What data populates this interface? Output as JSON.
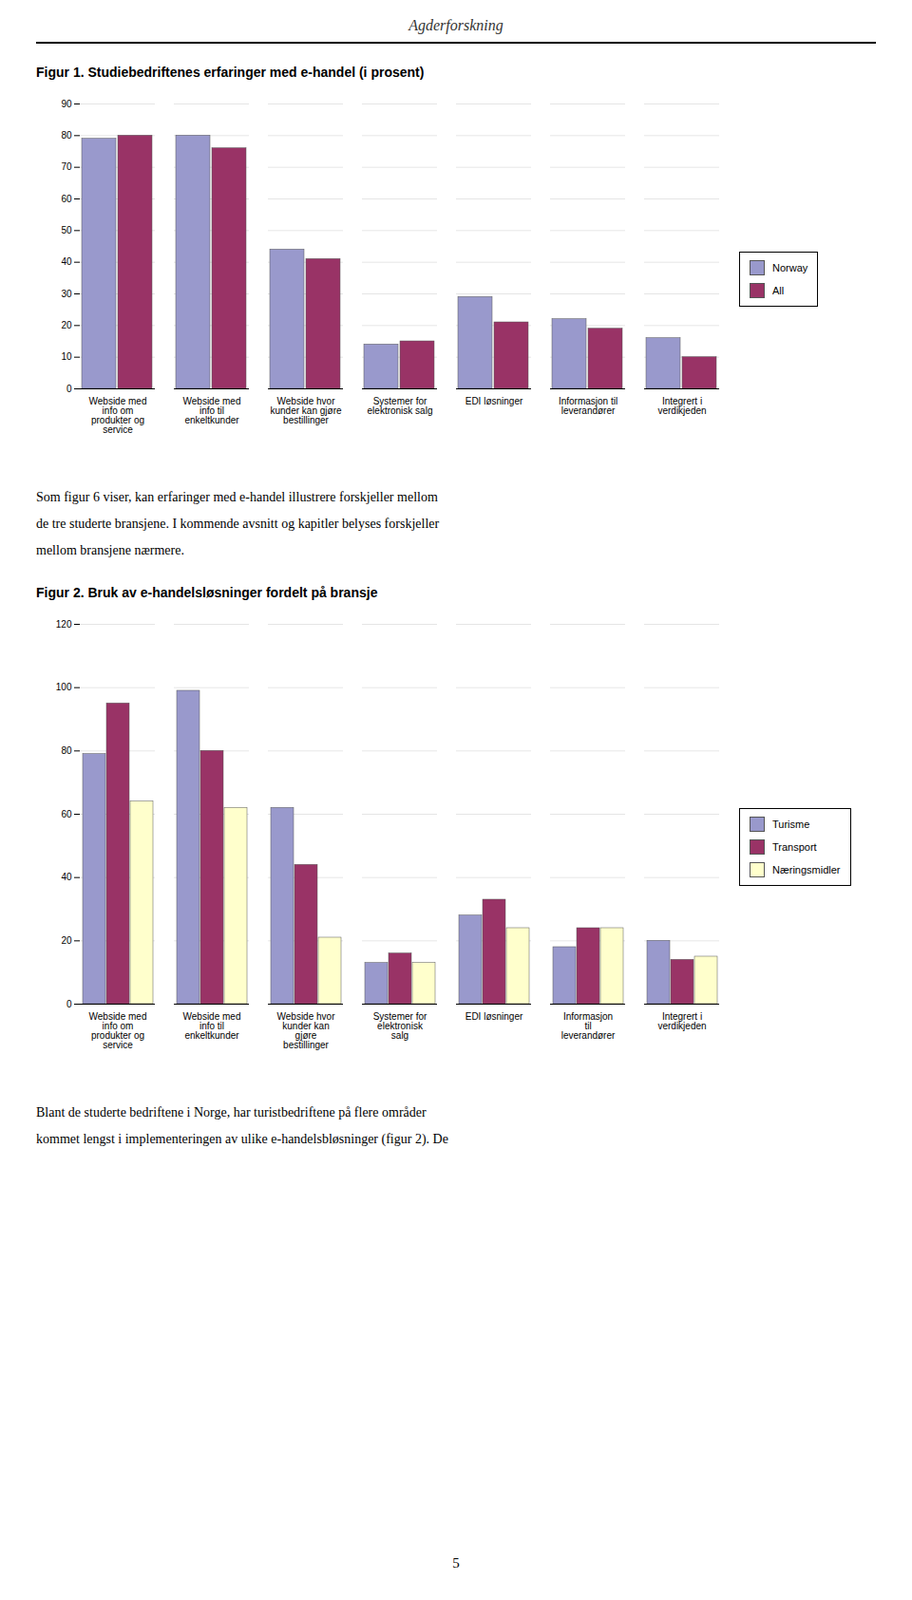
{
  "title": "Agderforskning",
  "annotations": [
    "5"
  ],
  "chart_data": [
    {
      "type": "bar",
      "title": "Figur 1. Studiebedriftenes erfaringer med e-handel (i prosent)",
      "categories": [
        "Webside med\ninfo om\nprodukter og\nservice",
        "Webside med\ninfo til\nenkeltkunder",
        "Webside hvor\nkunder kan gjøre\nbestillinger",
        "Systemer for\nelektronisk salg",
        "EDI løsninger",
        "Informasjon til\nleverandører",
        "Integrert i\nverdikjeden"
      ],
      "series": [
        {
          "name": "Norway",
          "color": "#9999cc",
          "values": [
            79,
            80,
            44,
            14,
            29,
            22,
            16
          ]
        },
        {
          "name": "All",
          "color": "#993366",
          "values": [
            80,
            76,
            41,
            15,
            21,
            19,
            10
          ]
        }
      ],
      "ylim": [
        0,
        90
      ],
      "yticks": [
        0,
        10,
        20,
        30,
        40,
        50,
        60,
        70,
        80,
        90
      ],
      "grid": true,
      "legend": "right",
      "annotations": [
        "Som figur 6 viser, kan erfaringer med e-handel illustrere forskjeller mellom",
        "de tre studerte bransjene. I kommende avsnitt og kapitler belyses forskjeller",
        "mellom bransjene nærmere."
      ]
    },
    {
      "type": "bar",
      "title": "Figur 2. Bruk av e-handelsløsninger fordelt på bransje",
      "categories": [
        "Webside med\ninfo om\nprodukter og\nservice",
        "Webside med\ninfo til\nenkeltkunder",
        "Webside hvor\nkunder kan\ngjøre\nbestillinger",
        "Systemer for\nelektronisk\nsalg",
        "EDI løsninger",
        "Informasjon\ntil\nleverandører",
        "Integrert i\nverdikjeden"
      ],
      "series": [
        {
          "name": "Turisme",
          "color": "#9999cc",
          "values": [
            79,
            99,
            62,
            13,
            28,
            18,
            20
          ]
        },
        {
          "name": "Transport",
          "color": "#993366",
          "values": [
            95,
            80,
            44,
            16,
            33,
            24,
            14
          ]
        },
        {
          "name": "Næringsmidler",
          "color": "#ffffcc",
          "values": [
            64,
            62,
            21,
            13,
            24,
            24,
            15
          ]
        }
      ],
      "ylim": [
        0,
        120
      ],
      "yticks": [
        0,
        20,
        40,
        60,
        80,
        100,
        120
      ],
      "grid": true,
      "legend": "right",
      "annotations": [
        "Blant de studerte bedriftene i Norge, har turistbedriftene på flere områder",
        "kommet lengst i implementeringen av ulike e-handelsbløsninger (figur 2). De"
      ]
    }
  ]
}
